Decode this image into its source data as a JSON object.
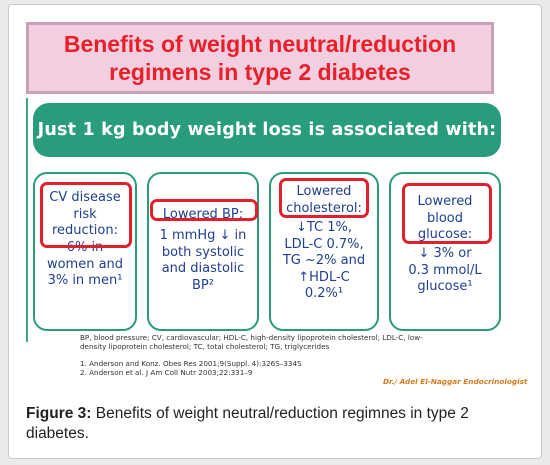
{
  "title": {
    "line1": "Benefits of  weight neutral/reduction",
    "line2": "regimens  in type 2 diabetes"
  },
  "banner": "Just 1 kg body weight loss is associated with:",
  "cards": [
    {
      "highlight_lines": [
        "CV disease",
        "risk",
        "reduction:"
      ],
      "lines": [
        "6% in",
        "women and",
        "3% in men¹"
      ]
    },
    {
      "highlight_lines": [
        "Lowered BP:"
      ],
      "lines": [
        "1 mmHg ↓ in",
        "both systolic",
        "and diastolic",
        "BP²"
      ]
    },
    {
      "highlight_lines": [
        "Lowered",
        "cholesterol:"
      ],
      "lines": [
        "↓TC 1%,",
        "LDL-C 0.7%,",
        "TG ~2% and",
        "↑HDL-C",
        "0.2%¹"
      ]
    },
    {
      "highlight_lines": [
        "Lowered",
        "blood",
        "glucose:"
      ],
      "lines": [
        "↓ 3% or",
        "0.3 mmol/L",
        "glucose¹"
      ]
    }
  ],
  "footnotes": {
    "abbrev1": "BP, blood pressure; CV, cardiovascular; HDL-C, high-density lipoprotein cholesterol; LDL-C, low-",
    "abbrev2": "density lipoprotein cholesterol; TC, total cholesterol; TG, triglycerides",
    "ref1": "1. Anderson and Konz. Obes Res 2001;9(Suppl. 4):326S–334S",
    "ref2": "2. Anderson et al. J Am Coll Nutr 2003;22:331–9"
  },
  "signature": "Dr./ Adel El-Naggar   Endocrinologist",
  "caption": {
    "label": "Figure 3:",
    "text": " Benefits of weight neutral/reduction regimnes in type 2 diabetes."
  },
  "colors": {
    "title_red": "#e8202a",
    "title_bg": "#f2cfe0",
    "teal": "#2a9c7e",
    "card_text": "#1f3f8f",
    "highlight": "#e0202a"
  }
}
